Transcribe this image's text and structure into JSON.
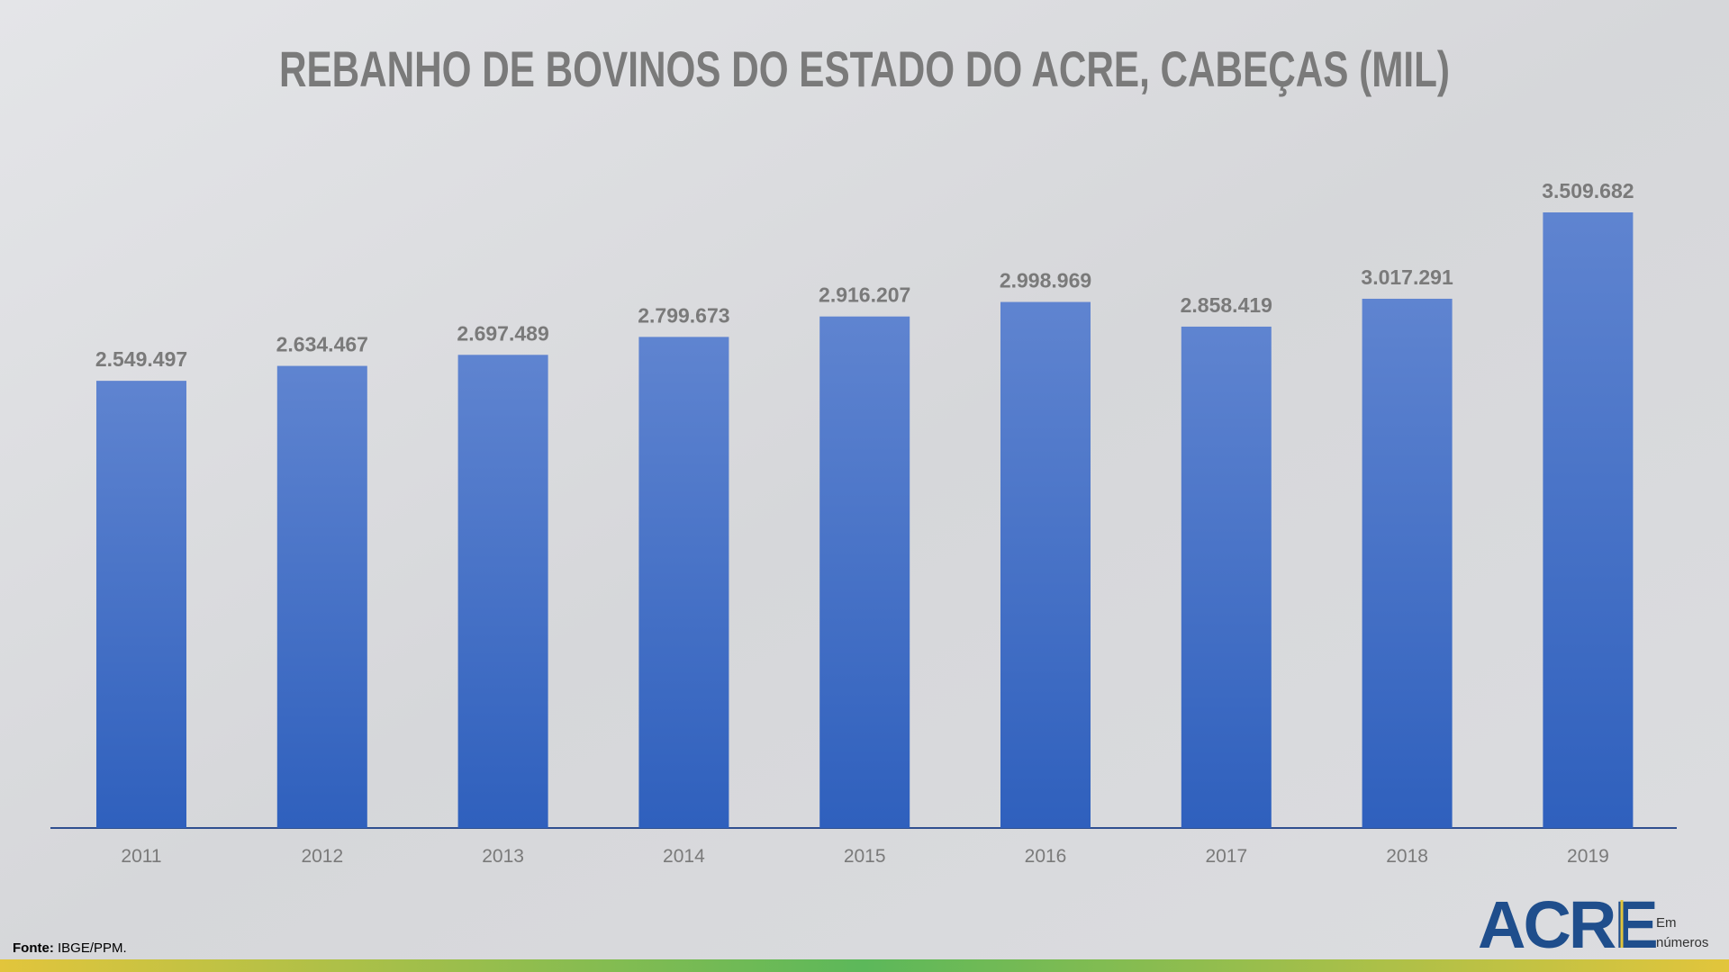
{
  "chart_data": {
    "type": "bar",
    "title": "REBANHO DE BOVINOS DO ESTADO DO ACRE, CABEÇAS (MIL)",
    "categories": [
      "2011",
      "2012",
      "2013",
      "2014",
      "2015",
      "2016",
      "2017",
      "2018",
      "2019"
    ],
    "values": [
      2549497,
      2634467,
      2697489,
      2799673,
      2916207,
      2998969,
      2858419,
      3017291,
      3509682
    ],
    "value_labels": [
      "2.549.497",
      "2.634.467",
      "2.697.489",
      "2.799.673",
      "2.916.207",
      "2.998.969",
      "2.858.419",
      "3.017.291",
      "3.509.682"
    ],
    "color": "#4472c4"
  },
  "source": {
    "label": "Fonte:",
    "text": "IBGE/PPM."
  },
  "logo": {
    "name": "ACRE",
    "line1": "Em",
    "line2": "números"
  }
}
